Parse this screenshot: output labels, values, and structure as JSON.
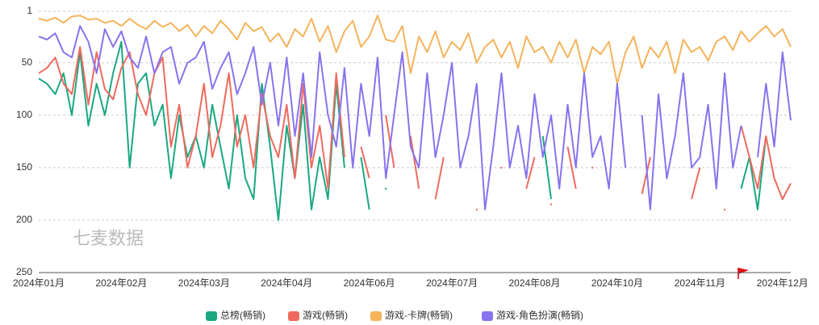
{
  "chart_data": {
    "type": "line",
    "annotation": "七麦数据",
    "categories": [
      "2024年01月",
      null,
      null,
      null,
      null,
      null,
      null,
      null,
      null,
      null,
      "2024年02月",
      null,
      null,
      null,
      null,
      null,
      null,
      null,
      null,
      null,
      "2024年03月",
      null,
      null,
      null,
      null,
      null,
      null,
      null,
      null,
      null,
      "2024年04月",
      null,
      null,
      null,
      null,
      null,
      null,
      null,
      null,
      null,
      "2024年06月",
      null,
      null,
      null,
      null,
      null,
      null,
      null,
      null,
      null,
      "2024年07月",
      null,
      null,
      null,
      null,
      null,
      null,
      null,
      null,
      null,
      "2024年08月",
      null,
      null,
      null,
      null,
      null,
      null,
      null,
      null,
      null,
      "2024年10月",
      null,
      null,
      null,
      null,
      null,
      null,
      null,
      null,
      null,
      "2024年11月",
      null,
      null,
      null,
      null,
      null,
      null,
      null,
      null,
      null,
      "2024年12月",
      null
    ],
    "ylim": [
      1,
      250
    ],
    "inverted": true,
    "yticks": [
      1,
      50,
      100,
      150,
      200,
      250
    ],
    "grid": true,
    "legend": "bottom",
    "series": [
      {
        "name": "总榜(畅销)",
        "color": "#1aa882",
        "values": [
          65,
          70,
          80,
          60,
          100,
          40,
          110,
          70,
          100,
          60,
          30,
          150,
          70,
          60,
          110,
          90,
          160,
          100,
          140,
          120,
          150,
          90,
          130,
          170,
          100,
          160,
          180,
          70,
          130,
          200,
          110,
          160,
          90,
          190,
          140,
          180,
          70,
          150,
          null,
          140,
          190,
          null,
          170,
          null,
          null,
          null,
          null,
          null,
          null,
          null,
          null,
          null,
          null,
          null,
          null,
          null,
          null,
          null,
          null,
          null,
          null,
          120,
          180,
          null,
          null,
          null,
          null,
          null,
          null,
          null,
          null,
          null,
          null,
          null,
          null,
          null,
          null,
          null,
          null,
          null,
          null,
          null,
          null,
          null,
          null,
          170,
          140,
          190,
          120,
          null,
          180,
          null
        ]
      },
      {
        "name": "游戏(畅销)",
        "color": "#ee6a5e",
        "values": [
          60,
          55,
          45,
          70,
          80,
          35,
          90,
          40,
          75,
          85,
          55,
          40,
          80,
          100,
          60,
          45,
          130,
          90,
          150,
          120,
          70,
          140,
          110,
          60,
          130,
          100,
          150,
          80,
          120,
          140,
          90,
          160,
          70,
          150,
          110,
          170,
          60,
          140,
          null,
          130,
          160,
          null,
          100,
          150,
          null,
          120,
          170,
          null,
          180,
          140,
          null,
          null,
          null,
          190,
          null,
          null,
          150,
          null,
          null,
          170,
          140,
          null,
          185,
          null,
          130,
          170,
          null,
          150,
          null,
          165,
          null,
          null,
          null,
          175,
          140,
          null,
          160,
          null,
          null,
          180,
          150,
          null,
          null,
          190,
          null,
          110,
          140,
          170,
          120,
          160,
          180,
          165
        ]
      },
      {
        "name": "游戏-卡牌(畅销)",
        "color": "#f5b35c",
        "values": [
          8,
          10,
          7,
          12,
          6,
          5,
          9,
          8,
          12,
          10,
          15,
          8,
          14,
          18,
          10,
          16,
          12,
          20,
          14,
          25,
          15,
          22,
          10,
          18,
          28,
          12,
          20,
          16,
          30,
          22,
          35,
          18,
          25,
          8,
          30,
          15,
          40,
          20,
          10,
          35,
          25,
          5,
          28,
          30,
          15,
          60,
          25,
          40,
          20,
          45,
          30,
          38,
          22,
          50,
          35,
          28,
          45,
          30,
          55,
          25,
          40,
          35,
          50,
          30,
          45,
          28,
          60,
          35,
          42,
          30,
          70,
          40,
          25,
          55,
          35,
          45,
          30,
          60,
          28,
          40,
          35,
          48,
          30,
          25,
          38,
          20,
          30,
          22,
          15,
          25,
          18,
          35
        ]
      },
      {
        "name": "游戏-角色扮演(畅销)",
        "color": "#8873ee",
        "values": [
          25,
          28,
          22,
          40,
          45,
          15,
          30,
          60,
          18,
          35,
          20,
          45,
          55,
          25,
          60,
          40,
          35,
          70,
          50,
          45,
          30,
          75,
          55,
          40,
          80,
          60,
          35,
          90,
          50,
          110,
          45,
          120,
          60,
          140,
          40,
          100,
          130,
          55,
          150,
          70,
          120,
          45,
          160,
          100,
          40,
          130,
          150,
          60,
          140,
          100,
          50,
          150,
          120,
          70,
          190,
          130,
          60,
          150,
          110,
          160,
          80,
          140,
          100,
          170,
          90,
          150,
          60,
          140,
          120,
          170,
          70,
          150,
          null,
          100,
          190,
          80,
          160,
          120,
          60,
          150,
          140,
          90,
          170,
          60,
          150,
          110,
          null,
          140,
          70,
          130,
          40,
          105
        ]
      }
    ]
  }
}
